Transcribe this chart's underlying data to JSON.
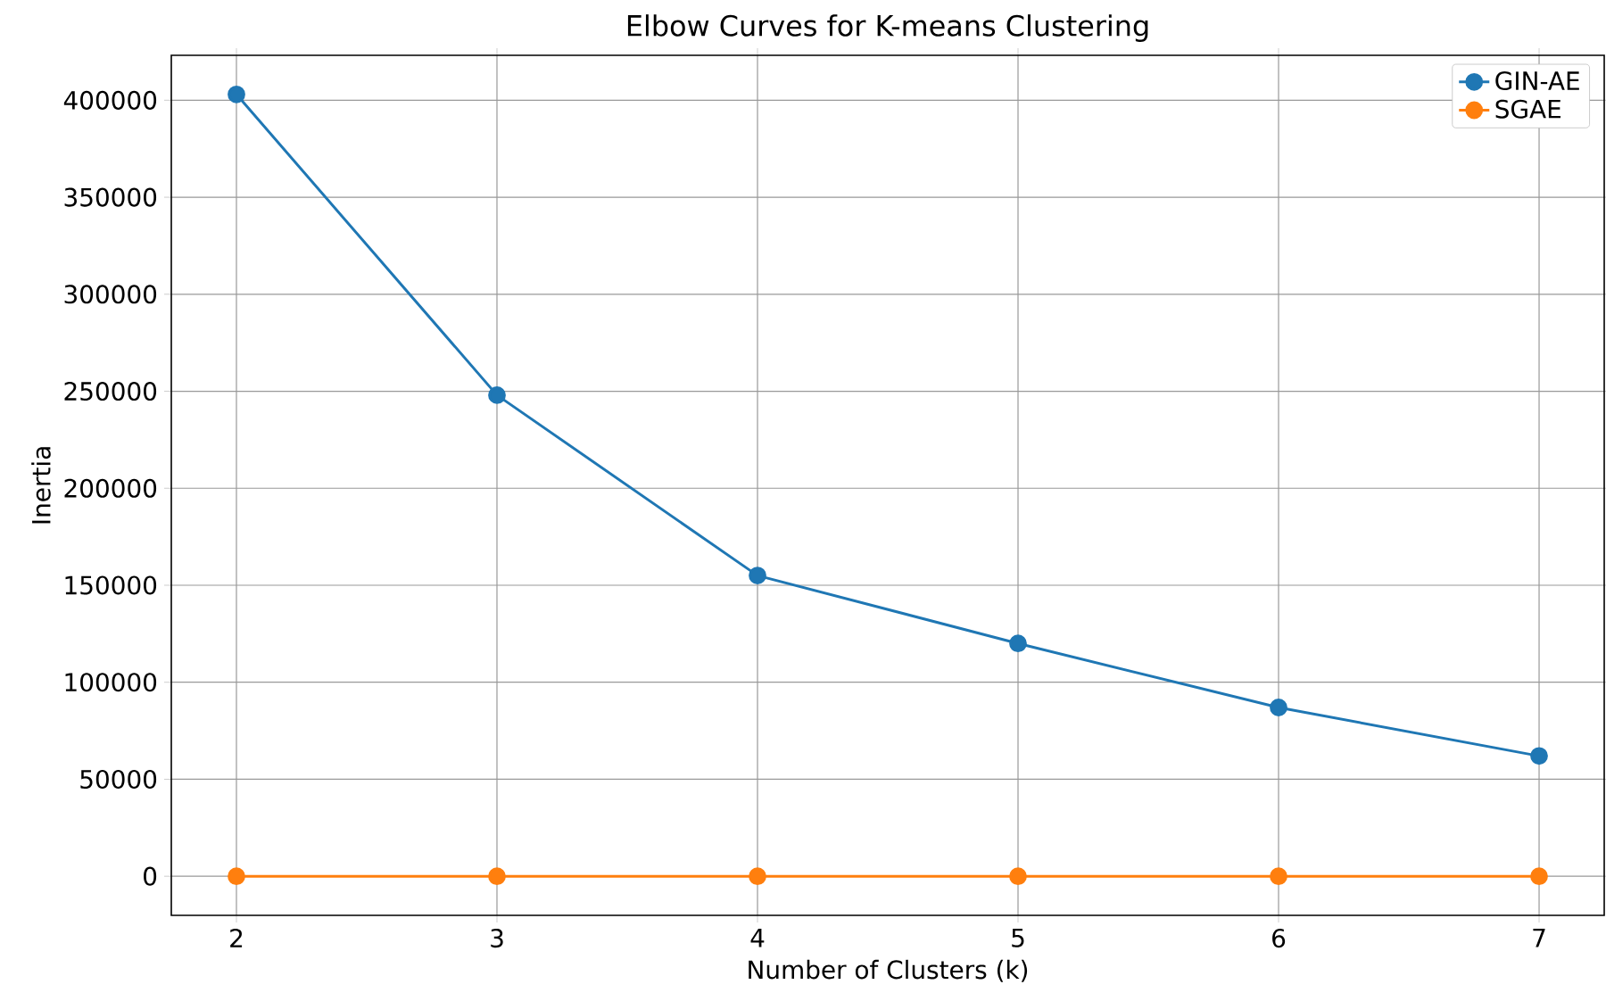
{
  "chart_data": {
    "type": "line",
    "title": "Elbow Curves for K-means Clustering",
    "xlabel": "Number of Clusters (k)",
    "ylabel": "Inertia",
    "x": [
      2,
      3,
      4,
      5,
      6,
      7
    ],
    "series": [
      {
        "name": "GIN-AE",
        "color": "#1f77b4",
        "values": [
          403000,
          248000,
          155000,
          120000,
          87000,
          62000
        ]
      },
      {
        "name": "SGAE",
        "color": "#ff7f0e",
        "values": [
          0,
          0,
          0,
          0,
          0,
          0
        ]
      }
    ],
    "xlim": [
      1.75,
      7.25
    ],
    "ylim": [
      -20150,
      423150
    ],
    "xticks": [
      2,
      3,
      4,
      5,
      6,
      7
    ],
    "yticks": [
      0,
      50000,
      100000,
      150000,
      200000,
      250000,
      300000,
      350000,
      400000
    ],
    "grid": true,
    "legend": "top right",
    "marker": "circle",
    "line_style": "solid"
  }
}
